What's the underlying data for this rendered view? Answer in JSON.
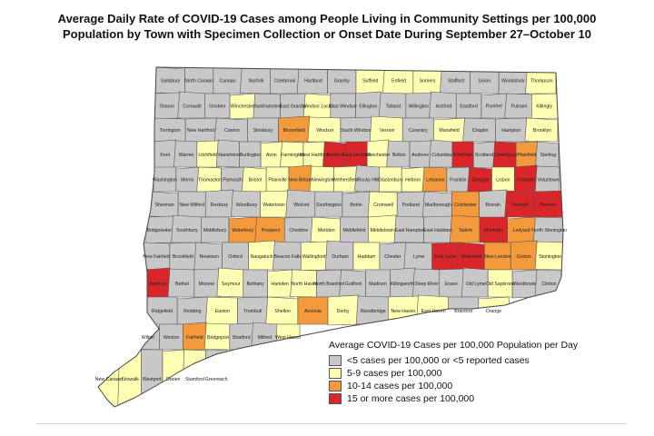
{
  "title_line1": "Average Daily Rate of COVID-19 Cases among People Living in Community Settings per 100,000",
  "title_line2": "Population by Town with Specimen Collection or Onset Date During September 27–October 10",
  "legend": {
    "title": "Average COVID-19 Cases per 100,000 Population per Day",
    "items": [
      {
        "label": "<5 cases per 100,000 or <5 reported cases",
        "color": "#c8c8c8"
      },
      {
        "label": "5-9 cases per 100,000",
        "color": "#ffffb3"
      },
      {
        "label": "10-14 cases per 100,000",
        "color": "#f39a3c"
      },
      {
        "label": "15 or more cases per 100,000",
        "color": "#d9262b"
      }
    ]
  },
  "colors": {
    "gray": "#c8c8c8",
    "yellow": "#ffffb3",
    "orange": "#f39a3c",
    "red": "#d9262b"
  },
  "towns": [
    {
      "name": "Salisbury",
      "cat": "gray"
    },
    {
      "name": "North Canaan",
      "cat": "gray"
    },
    {
      "name": "Canaan",
      "cat": "gray"
    },
    {
      "name": "Norfolk",
      "cat": "gray"
    },
    {
      "name": "Colebrook",
      "cat": "gray"
    },
    {
      "name": "Hartland",
      "cat": "gray"
    },
    {
      "name": "Granby",
      "cat": "gray"
    },
    {
      "name": "Suffield",
      "cat": "yellow"
    },
    {
      "name": "Enfield",
      "cat": "yellow"
    },
    {
      "name": "Somers",
      "cat": "yellow"
    },
    {
      "name": "Stafford",
      "cat": "gray"
    },
    {
      "name": "Union",
      "cat": "gray"
    },
    {
      "name": "Woodstock",
      "cat": "gray"
    },
    {
      "name": "Thompson",
      "cat": "yellow"
    },
    {
      "name": "Sharon",
      "cat": "gray"
    },
    {
      "name": "Cornwall",
      "cat": "gray"
    },
    {
      "name": "Goshen",
      "cat": "gray"
    },
    {
      "name": "Winchester",
      "cat": "yellow"
    },
    {
      "name": "Barkhamsted",
      "cat": "gray"
    },
    {
      "name": "East Granby",
      "cat": "gray"
    },
    {
      "name": "Windsor Locks",
      "cat": "yellow"
    },
    {
      "name": "East Windsor",
      "cat": "gray"
    },
    {
      "name": "Ellington",
      "cat": "gray"
    },
    {
      "name": "Tolland",
      "cat": "gray"
    },
    {
      "name": "Willington",
      "cat": "gray"
    },
    {
      "name": "Ashford",
      "cat": "gray"
    },
    {
      "name": "Eastford",
      "cat": "gray"
    },
    {
      "name": "Pomfret",
      "cat": "gray"
    },
    {
      "name": "Putnam",
      "cat": "gray"
    },
    {
      "name": "Killingly",
      "cat": "yellow"
    },
    {
      "name": "Torrington",
      "cat": "gray"
    },
    {
      "name": "New Hartford",
      "cat": "gray"
    },
    {
      "name": "Canton",
      "cat": "gray"
    },
    {
      "name": "Simsbury",
      "cat": "gray"
    },
    {
      "name": "Bloomfield",
      "cat": "orange"
    },
    {
      "name": "Windsor",
      "cat": "yellow"
    },
    {
      "name": "South Windsor",
      "cat": "gray"
    },
    {
      "name": "Vernon",
      "cat": "yellow"
    },
    {
      "name": "Coventry",
      "cat": "gray"
    },
    {
      "name": "Mansfield",
      "cat": "yellow"
    },
    {
      "name": "Chaplin",
      "cat": "gray"
    },
    {
      "name": "Hampton",
      "cat": "gray"
    },
    {
      "name": "Brooklyn",
      "cat": "yellow"
    },
    {
      "name": "Kent",
      "cat": "gray"
    },
    {
      "name": "Warren",
      "cat": "gray"
    },
    {
      "name": "Litchfield",
      "cat": "yellow"
    },
    {
      "name": "Harwinton",
      "cat": "gray"
    },
    {
      "name": "Burlington",
      "cat": "gray"
    },
    {
      "name": "Avon",
      "cat": "yellow"
    },
    {
      "name": "Farmington",
      "cat": "yellow"
    },
    {
      "name": "West Hartford",
      "cat": "yellow"
    },
    {
      "name": "Hartford",
      "cat": "red"
    },
    {
      "name": "East Hartford",
      "cat": "red"
    },
    {
      "name": "Manchester",
      "cat": "yellow"
    },
    {
      "name": "Bolton",
      "cat": "gray"
    },
    {
      "name": "Andover",
      "cat": "gray"
    },
    {
      "name": "Columbia",
      "cat": "gray"
    },
    {
      "name": "Windham",
      "cat": "red"
    },
    {
      "name": "Scotland",
      "cat": "gray"
    },
    {
      "name": "Canterbury",
      "cat": "red"
    },
    {
      "name": "Plainfield",
      "cat": "orange"
    },
    {
      "name": "Sterling",
      "cat": "gray"
    },
    {
      "name": "Washington",
      "cat": "gray"
    },
    {
      "name": "Morris",
      "cat": "gray"
    },
    {
      "name": "Thomaston",
      "cat": "yellow"
    },
    {
      "name": "Plymouth",
      "cat": "gray"
    },
    {
      "name": "Bristol",
      "cat": "yellow"
    },
    {
      "name": "Plainville",
      "cat": "yellow"
    },
    {
      "name": "New Britain",
      "cat": "orange"
    },
    {
      "name": "Newington",
      "cat": "yellow"
    },
    {
      "name": "Wethersfield",
      "cat": "yellow"
    },
    {
      "name": "Rocky Hill",
      "cat": "gray"
    },
    {
      "name": "Glastonbury",
      "cat": "yellow"
    },
    {
      "name": "Hebron",
      "cat": "yellow"
    },
    {
      "name": "Lebanon",
      "cat": "orange"
    },
    {
      "name": "Franklin",
      "cat": "gray"
    },
    {
      "name": "Sprague",
      "cat": "red"
    },
    {
      "name": "Lisbon",
      "cat": "yellow"
    },
    {
      "name": "Griswold",
      "cat": "red"
    },
    {
      "name": "Voluntown",
      "cat": "gray"
    },
    {
      "name": "Sherman",
      "cat": "gray"
    },
    {
      "name": "New Milford",
      "cat": "gray"
    },
    {
      "name": "Roxbury",
      "cat": "gray"
    },
    {
      "name": "Woodbury",
      "cat": "gray"
    },
    {
      "name": "Watertown",
      "cat": "yellow"
    },
    {
      "name": "Wolcott",
      "cat": "gray"
    },
    {
      "name": "Southington",
      "cat": "gray"
    },
    {
      "name": "Berlin",
      "cat": "gray"
    },
    {
      "name": "Cromwell",
      "cat": "yellow"
    },
    {
      "name": "Portland",
      "cat": "gray"
    },
    {
      "name": "Marlborough",
      "cat": "gray"
    },
    {
      "name": "Colchester",
      "cat": "orange"
    },
    {
      "name": "Bozrah",
      "cat": "gray"
    },
    {
      "name": "Norwich",
      "cat": "red"
    },
    {
      "name": "Preston",
      "cat": "red"
    },
    {
      "name": "Bridgewater",
      "cat": "gray"
    },
    {
      "name": "Southbury",
      "cat": "gray"
    },
    {
      "name": "Middlebury",
      "cat": "gray"
    },
    {
      "name": "Waterbury",
      "cat": "orange"
    },
    {
      "name": "Prospect",
      "cat": "orange"
    },
    {
      "name": "Cheshire",
      "cat": "gray"
    },
    {
      "name": "Meriden",
      "cat": "yellow"
    },
    {
      "name": "Middlefield",
      "cat": "gray"
    },
    {
      "name": "Middletown",
      "cat": "yellow"
    },
    {
      "name": "East Hampton",
      "cat": "gray"
    },
    {
      "name": "East Haddam",
      "cat": "gray"
    },
    {
      "name": "Salem",
      "cat": "orange"
    },
    {
      "name": "Montville",
      "cat": "red"
    },
    {
      "name": "Ledyard",
      "cat": "orange"
    },
    {
      "name": "North Stonington",
      "cat": "gray"
    },
    {
      "name": "New Fairfield",
      "cat": "gray"
    },
    {
      "name": "Brookfield",
      "cat": "gray"
    },
    {
      "name": "Newtown",
      "cat": "gray"
    },
    {
      "name": "Oxford",
      "cat": "gray"
    },
    {
      "name": "Naugatuck",
      "cat": "yellow"
    },
    {
      "name": "Beacon Falls",
      "cat": "gray"
    },
    {
      "name": "Wallingford",
      "cat": "yellow"
    },
    {
      "name": "Durham",
      "cat": "gray"
    },
    {
      "name": "Haddam",
      "cat": "yellow"
    },
    {
      "name": "Chester",
      "cat": "gray"
    },
    {
      "name": "Lyme",
      "cat": "gray"
    },
    {
      "name": "East Lyme",
      "cat": "red"
    },
    {
      "name": "Waterford",
      "cat": "red"
    },
    {
      "name": "New London",
      "cat": "orange"
    },
    {
      "name": "Groton",
      "cat": "orange"
    },
    {
      "name": "Stonington",
      "cat": "yellow"
    },
    {
      "name": "Danbury",
      "cat": "red"
    },
    {
      "name": "Bethel",
      "cat": "gray"
    },
    {
      "name": "Monroe",
      "cat": "gray"
    },
    {
      "name": "Seymour",
      "cat": "yellow"
    },
    {
      "name": "Bethany",
      "cat": "gray"
    },
    {
      "name": "Hamden",
      "cat": "yellow"
    },
    {
      "name": "North Haven",
      "cat": "yellow"
    },
    {
      "name": "North Branford",
      "cat": "gray"
    },
    {
      "name": "Guilford",
      "cat": "gray"
    },
    {
      "name": "Madison",
      "cat": "gray"
    },
    {
      "name": "Killingworth",
      "cat": "gray"
    },
    {
      "name": "Deep River",
      "cat": "gray"
    },
    {
      "name": "Essex",
      "cat": "gray"
    },
    {
      "name": "Old Lyme",
      "cat": "gray"
    },
    {
      "name": "Old Saybrook",
      "cat": "yellow"
    },
    {
      "name": "Westbrook",
      "cat": "gray"
    },
    {
      "name": "Clinton",
      "cat": "gray"
    },
    {
      "name": "Ridgefield",
      "cat": "gray"
    },
    {
      "name": "Redding",
      "cat": "gray"
    },
    {
      "name": "Easton",
      "cat": "yellow"
    },
    {
      "name": "Trumbull",
      "cat": "gray"
    },
    {
      "name": "Shelton",
      "cat": "yellow"
    },
    {
      "name": "Ansonia",
      "cat": "orange"
    },
    {
      "name": "Derby",
      "cat": "yellow"
    },
    {
      "name": "Woodbridge",
      "cat": "gray"
    },
    {
      "name": "New Haven",
      "cat": "yellow"
    },
    {
      "name": "East Haven",
      "cat": "yellow"
    },
    {
      "name": "Branford",
      "cat": "gray"
    },
    {
      "name": "Orange",
      "cat": "yellow"
    },
    {
      "name": "Wilton",
      "cat": "gray"
    },
    {
      "name": "Weston",
      "cat": "gray"
    },
    {
      "name": "Fairfield",
      "cat": "orange"
    },
    {
      "name": "Bridgeport",
      "cat": "yellow"
    },
    {
      "name": "Stratford",
      "cat": "gray"
    },
    {
      "name": "Milford",
      "cat": "gray"
    },
    {
      "name": "West Haven",
      "cat": "yellow"
    },
    {
      "name": "New Canaan",
      "cat": "yellow"
    },
    {
      "name": "Norwalk",
      "cat": "yellow"
    },
    {
      "name": "Westport",
      "cat": "gray"
    },
    {
      "name": "Darien",
      "cat": "yellow"
    },
    {
      "name": "Stamford",
      "cat": "yellow"
    },
    {
      "name": "Greenwich",
      "cat": "gray"
    }
  ]
}
